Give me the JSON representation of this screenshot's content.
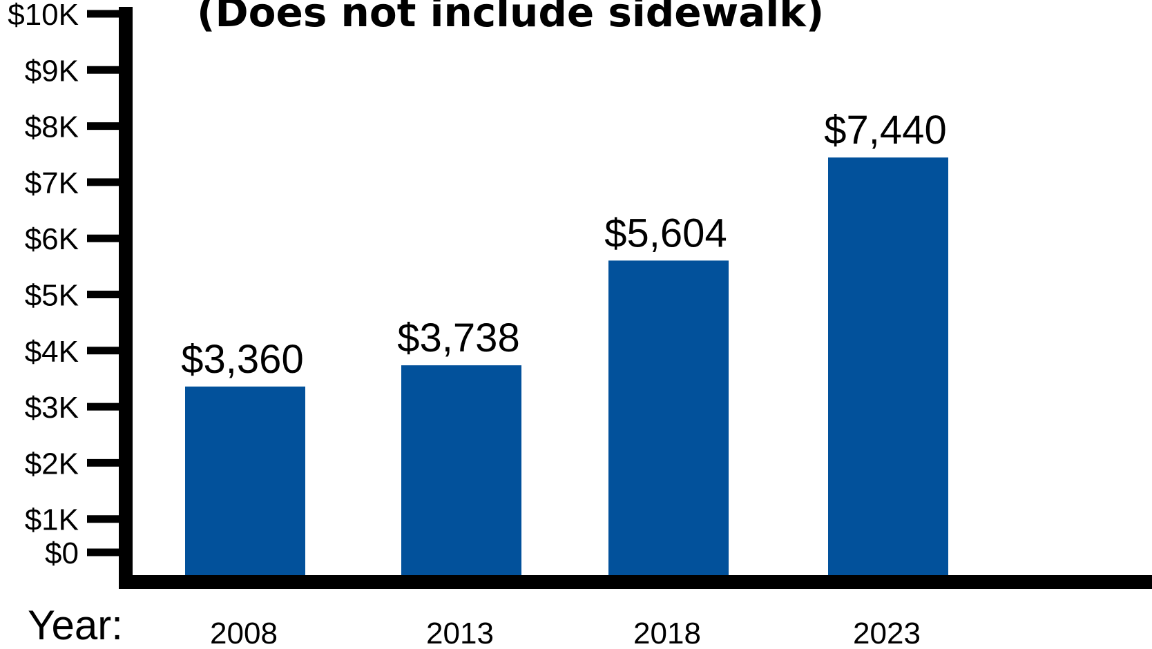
{
  "chart_data": {
    "type": "bar",
    "title": "(Does not include sidewalk)",
    "xlabel": "Year:",
    "ylabel": "",
    "categories": [
      "2008",
      "2013",
      "2018",
      "2023"
    ],
    "values": [
      3360,
      3738,
      5604,
      7440
    ],
    "value_labels": [
      "$3,360",
      "$3,738",
      "$5,604",
      "$7,440"
    ],
    "ylim": [
      0,
      10000
    ],
    "yticks": [
      0,
      1000,
      2000,
      3000,
      4000,
      5000,
      6000,
      7000,
      8000,
      9000,
      10000
    ],
    "ytick_labels": [
      "$0",
      "$1K",
      "$2K",
      "$3K",
      "$4K",
      "$5K",
      "$6K",
      "$7K",
      "$8K",
      "$9K",
      "$10K"
    ],
    "grid": false,
    "legend": "none",
    "colors": {
      "bar": "#02519b",
      "axis": "#000000"
    }
  }
}
